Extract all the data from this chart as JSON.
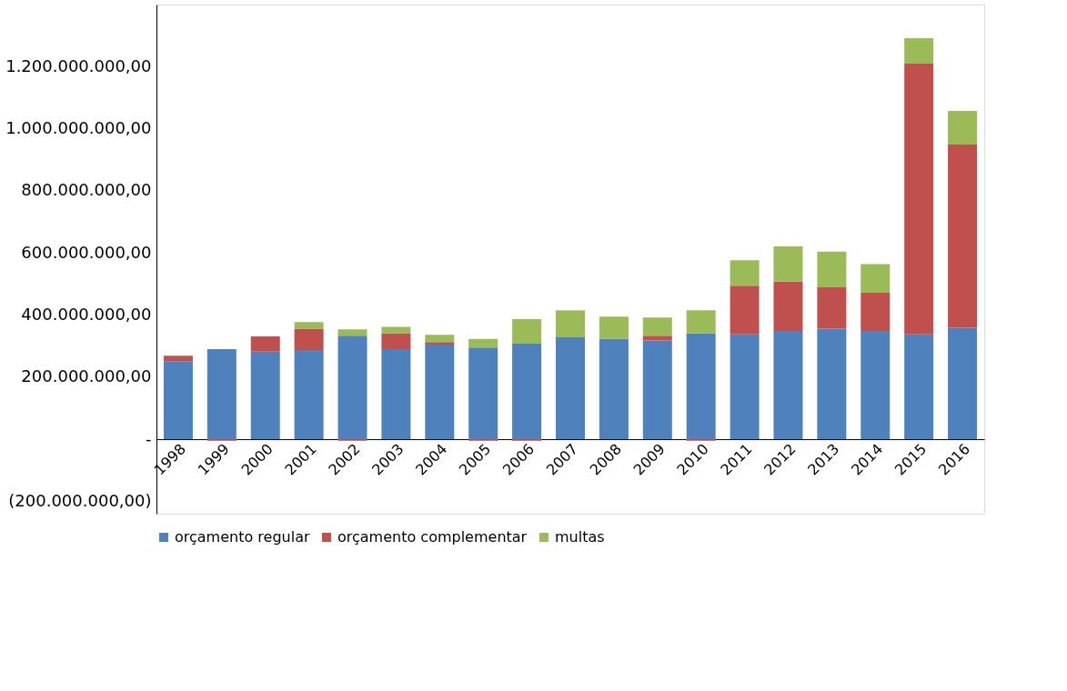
{
  "chart_data": {
    "type": "bar",
    "stacked": true,
    "categories": [
      "1998",
      "1999",
      "2000",
      "2001",
      "2002",
      "2003",
      "2004",
      "2005",
      "2006",
      "2007",
      "2008",
      "2009",
      "2010",
      "2011",
      "2012",
      "2013",
      "2014",
      "2015",
      "2016"
    ],
    "series": [
      {
        "name": "orçamento regular",
        "color": "#4f81bd",
        "values": [
          251000000,
          290000000,
          282000000,
          287000000,
          333000000,
          290000000,
          305000000,
          295000000,
          308000000,
          328000000,
          323000000,
          318000000,
          341000000,
          338000000,
          349000000,
          356000000,
          349000000,
          338000000,
          359000000
        ]
      },
      {
        "name": "orçamento complementar",
        "color": "#c0504d",
        "values": [
          18000000,
          -5000000,
          49000000,
          69000000,
          -5000000,
          51000000,
          8000000,
          -5000000,
          -5000000,
          null,
          null,
          15000000,
          -5000000,
          156000000,
          159000000,
          133000000,
          123000000,
          872000000,
          590000000
        ]
      },
      {
        "name": "multas",
        "color": "#9bbb59",
        "values": [
          null,
          null,
          null,
          21000000,
          21000000,
          21000000,
          23000000,
          28000000,
          79000000,
          87000000,
          72000000,
          59000000,
          74000000,
          82000000,
          113000000,
          115000000,
          92000000,
          82000000,
          108000000
        ]
      }
    ],
    "ylim": [
      -240000000,
      1400000000
    ],
    "yticks": [
      {
        "value": -200000000,
        "label": "(200.000.000,00)"
      },
      {
        "value": 0,
        "label": "-"
      },
      {
        "value": 200000000,
        "label": "200.000.000,00"
      },
      {
        "value": 400000000,
        "label": "400.000.000,00"
      },
      {
        "value": 600000000,
        "label": "600.000.000,00"
      },
      {
        "value": 800000000,
        "label": "800.000.000,00"
      },
      {
        "value": 1000000000,
        "label": "1.000.000.000,00"
      },
      {
        "value": 1200000000,
        "label": "1.200.000.000,00"
      }
    ],
    "grid": false,
    "legend": "bottom"
  }
}
